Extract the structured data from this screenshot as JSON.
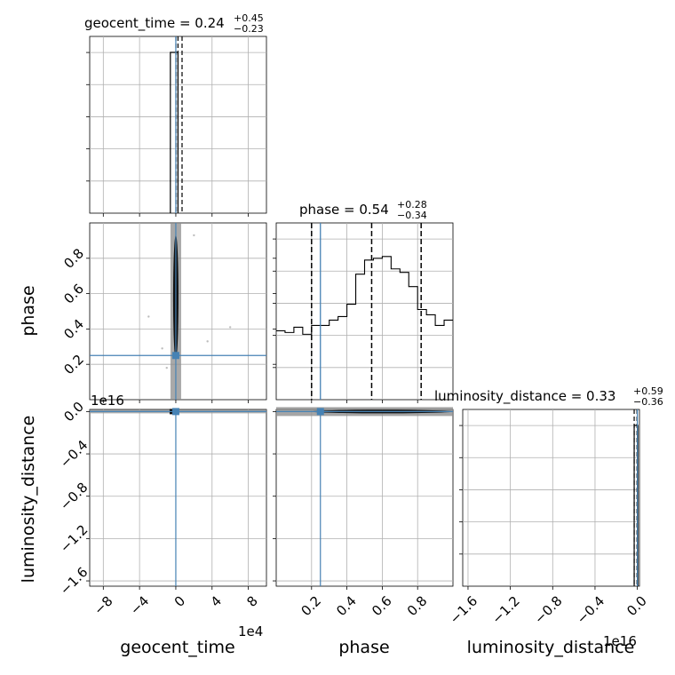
{
  "chart_data": {
    "type": "corner",
    "parameters": [
      "geocent_time",
      "phase",
      "luminosity_distance"
    ],
    "truths": {
      "geocent_time": 0,
      "phase": 0.25,
      "luminosity_distance": 0
    },
    "titles": [
      {
        "param": "geocent_time",
        "text": "geocent_time = 0.24",
        "plus": "+0.45",
        "minus": "−0.23"
      },
      {
        "param": "phase",
        "text": "phase = 0.54",
        "plus": "+0.28",
        "minus": "−0.34"
      },
      {
        "param": "luminosity_distance",
        "text": "luminosity_distance = 0.33",
        "plus": "+0.59",
        "minus": "−0.36"
      }
    ],
    "axes": {
      "geocent_time": {
        "label": "geocent_time",
        "range": [
          -9.5,
          10
        ],
        "ticks": [
          -8,
          -4,
          0,
          4,
          8
        ],
        "tick_labels": [
          "−8",
          "−4",
          "0",
          "4",
          "8"
        ],
        "offset": "1e4"
      },
      "phase": {
        "label": "phase",
        "range": [
          0,
          1
        ],
        "ticks": [
          0.2,
          0.4,
          0.6,
          0.8
        ],
        "tick_labels": [
          "0.2",
          "0.4",
          "0.6",
          "0.8"
        ]
      },
      "luminosity_distance": {
        "label": "luminosity_distance",
        "range": [
          -1.65,
          0.02
        ],
        "ticks": [
          -1.6,
          -1.2,
          -0.8,
          -0.4,
          0.0
        ],
        "tick_labels": [
          "−1.6",
          "−1.2",
          "−0.8",
          "−0.4",
          "0.0"
        ],
        "offset": "1e16"
      }
    },
    "phase_histogram": {
      "bin_edges": [
        0,
        0.05,
        0.1,
        0.15,
        0.2,
        0.25,
        0.3,
        0.35,
        0.4,
        0.45,
        0.5,
        0.55,
        0.6,
        0.65,
        0.7,
        0.75,
        0.8,
        0.85,
        0.9,
        0.95,
        1.0
      ],
      "counts": [
        0.39,
        0.38,
        0.41,
        0.37,
        0.42,
        0.42,
        0.45,
        0.47,
        0.54,
        0.71,
        0.79,
        0.8,
        0.81,
        0.74,
        0.72,
        0.64,
        0.51,
        0.48,
        0.42,
        0.45
      ],
      "quantiles": [
        0.2,
        0.54,
        0.82
      ]
    },
    "geocent_time_histogram": {
      "bin_edges": [
        -0.6,
        0.24
      ],
      "counts": [
        1.0
      ],
      "quantiles": [
        0.01,
        0.24,
        0.69
      ]
    },
    "luminosity_distance_histogram": {
      "bin_edges": [
        -0.03,
        0.005
      ],
      "counts": [
        1.0
      ],
      "quantiles": [
        -0.03,
        0.33,
        0.92
      ]
    },
    "grid": true
  }
}
